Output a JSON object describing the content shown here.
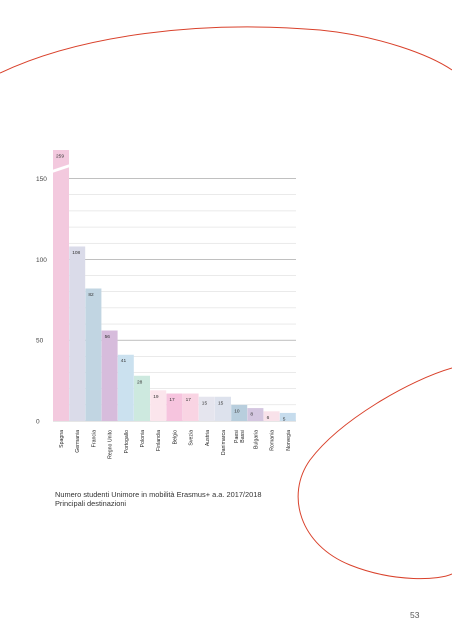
{
  "chart_data": {
    "type": "bar",
    "title": "",
    "xlabel": "",
    "ylabel": "",
    "ylim": [
      0,
      160
    ],
    "yticks": [
      0,
      50,
      100,
      150
    ],
    "grid": true,
    "categories": [
      "Spagna",
      "Germania",
      "Francia",
      "Regno Unito",
      "Portogallo",
      "Polonia",
      "Finlandia",
      "Belgio",
      "Svezia",
      "Austria",
      "Danimarca",
      "Paesi Bassi",
      "Bulgaria",
      "Romania",
      "Norvegia"
    ],
    "values": [
      259,
      108,
      82,
      56,
      41,
      28,
      19,
      17,
      17,
      15,
      15,
      10,
      8,
      6,
      5
    ],
    "value_labels": [
      "259",
      "108",
      "82",
      "56",
      "41",
      "28",
      "19",
      "17",
      "17",
      "15",
      "15",
      "10",
      "8",
      "6",
      "5"
    ],
    "broken_axis_values": [
      259
    ],
    "colors": [
      "#f3c9de",
      "#dadbe9",
      "#c1d5e2",
      "#d7bcdc",
      "#cbe1ef",
      "#cde9df",
      "#fbe5ec",
      "#f6c4de",
      "#f9d4e3",
      "#e5e5ee",
      "#dde2ed",
      "#b8cedd",
      "#d4c6e0",
      "#f9e2ea",
      "#c6dced"
    ]
  },
  "caption": {
    "line1": "Numero studenti Unimore in mobilità Erasmus+ a.a. 2017/2018",
    "line2": "Principali destinazioni"
  },
  "page_number": "53",
  "decoration_color": "#d9412b"
}
